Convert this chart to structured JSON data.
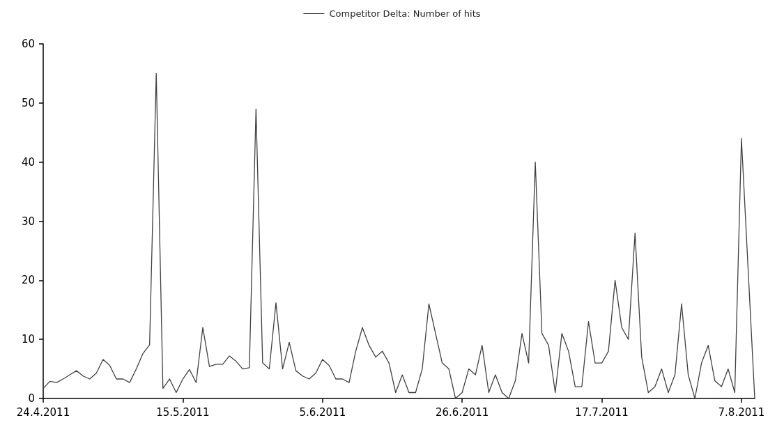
{
  "chart_data": {
    "type": "line",
    "x": [
      "2011-04-24",
      "2011-04-25",
      "2011-04-26",
      "2011-04-27",
      "2011-04-28",
      "2011-04-29",
      "2011-04-30",
      "2011-05-01",
      "2011-05-02",
      "2011-05-03",
      "2011-05-04",
      "2011-05-05",
      "2011-05-06",
      "2011-05-07",
      "2011-05-08",
      "2011-05-09",
      "2011-05-10",
      "2011-05-11",
      "2011-05-12",
      "2011-05-13",
      "2011-05-14",
      "2011-05-15",
      "2011-05-16",
      "2011-05-17",
      "2011-05-18",
      "2011-05-19",
      "2011-05-20",
      "2011-05-21",
      "2011-05-22",
      "2011-05-23",
      "2011-05-24",
      "2011-05-25",
      "2011-05-26",
      "2011-05-27",
      "2011-05-28",
      "2011-05-29",
      "2011-05-30",
      "2011-05-31",
      "2011-06-01",
      "2011-06-02",
      "2011-06-03",
      "2011-06-04",
      "2011-06-05",
      "2011-06-06",
      "2011-06-07",
      "2011-06-08",
      "2011-06-09",
      "2011-06-10",
      "2011-06-11",
      "2011-06-12",
      "2011-06-13",
      "2011-06-14",
      "2011-06-15",
      "2011-06-16",
      "2011-06-17",
      "2011-06-18",
      "2011-06-19",
      "2011-06-20",
      "2011-06-21",
      "2011-06-22",
      "2011-06-23",
      "2011-06-24",
      "2011-06-25",
      "2011-06-26",
      "2011-06-27",
      "2011-06-28",
      "2011-06-29",
      "2011-06-30",
      "2011-07-01",
      "2011-07-02",
      "2011-07-03",
      "2011-07-04",
      "2011-07-05",
      "2011-07-06",
      "2011-07-07",
      "2011-07-08",
      "2011-07-09",
      "2011-07-10",
      "2011-07-11",
      "2011-07-12",
      "2011-07-13",
      "2011-07-14",
      "2011-07-15",
      "2011-07-16",
      "2011-07-17",
      "2011-07-18",
      "2011-07-19",
      "2011-07-20",
      "2011-07-21",
      "2011-07-22",
      "2011-07-23",
      "2011-07-24",
      "2011-07-25",
      "2011-07-26",
      "2011-07-27",
      "2011-07-28",
      "2011-07-29",
      "2011-07-30",
      "2011-07-31",
      "2011-08-01",
      "2011-08-02",
      "2011-08-03",
      "2011-08-04",
      "2011-08-05",
      "2011-08-06",
      "2011-08-07",
      "2011-08-09"
    ],
    "series": [
      {
        "name": "Competitor Delta: Number of hits",
        "color": "#404040",
        "values": [
          1.7,
          2.9,
          2.7,
          3.3,
          4,
          4.7,
          3.8,
          3.3,
          4.3,
          6.6,
          5.6,
          3.3,
          3.3,
          2.7,
          5,
          7.6,
          9.1,
          55,
          1.7,
          3.3,
          1,
          3.3,
          4.9,
          2.7,
          12,
          5.4,
          5.8,
          5.8,
          7.2,
          6.3,
          5,
          5.2,
          49,
          6,
          5,
          16.2,
          5,
          9.5,
          4.7,
          3.8,
          3.3,
          4.3,
          6.6,
          5.6,
          3.3,
          3.3,
          2.7,
          8,
          12,
          9,
          7,
          8,
          6,
          1,
          4,
          1,
          1,
          5,
          16,
          11,
          6,
          5,
          0,
          1,
          5,
          4,
          9,
          1,
          4,
          1,
          0,
          3,
          11,
          6,
          40,
          11,
          9,
          1,
          11,
          8,
          2,
          2,
          13,
          6,
          6,
          8,
          20,
          12,
          10,
          28,
          7,
          1,
          2,
          5,
          1,
          4,
          16,
          4,
          0,
          6,
          9,
          3,
          2,
          5,
          1,
          44,
          0
        ]
      }
    ],
    "xlim": [
      "2011-04-24",
      "2011-08-09"
    ],
    "xticks": [
      {
        "value": "2011-04-24",
        "label": "24.4.2011"
      },
      {
        "value": "2011-05-15",
        "label": "15.5.2011"
      },
      {
        "value": "2011-06-05",
        "label": "5.6.2011"
      },
      {
        "value": "2011-06-26",
        "label": "26.6.2011"
      },
      {
        "value": "2011-07-17",
        "label": "17.7.2011"
      },
      {
        "value": "2011-08-07",
        "label": "7.8.2011"
      }
    ],
    "ylim": [
      0,
      60
    ],
    "yticks": [
      0,
      10,
      20,
      30,
      40,
      50,
      60
    ],
    "grid": false,
    "legend": "top",
    "marker": "none",
    "line_style": "solid"
  }
}
